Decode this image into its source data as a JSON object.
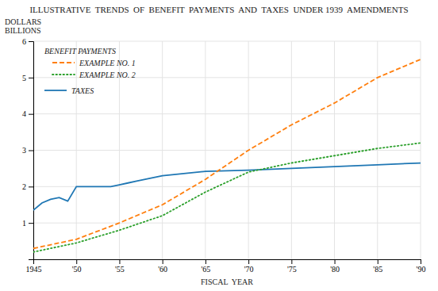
{
  "chart_data": {
    "type": "line",
    "title": "ILLUSTRATIVE  TRENDS  OF  BENEFIT  PAYMENTS  AND  TAXES  UNDER 1939  AMENDMENTS",
    "xlabel": "FISCAL  YEAR",
    "ylabel": [
      "DOLLARS",
      "BILLIONS"
    ],
    "annotations": [
      "BENEFIT PAYMENTS"
    ],
    "xlim": [
      1945,
      1990
    ],
    "ylim": [
      0,
      6
    ],
    "xticks": [
      1945,
      {
        "value": 1950,
        "label": "'50"
      },
      {
        "value": 1955,
        "label": "'55"
      },
      {
        "value": 1960,
        "label": "'60"
      },
      {
        "value": 1965,
        "label": "'65"
      },
      {
        "value": 1970,
        "label": "'70"
      },
      {
        "value": 1975,
        "label": "'75"
      },
      {
        "value": 1980,
        "label": "'80"
      },
      {
        "value": 1985,
        "label": "'85"
      },
      {
        "value": 1990,
        "label": "'90"
      }
    ],
    "yticks": [
      1,
      2,
      3,
      4,
      5,
      6
    ],
    "grid": true,
    "legend": "upper left",
    "series": [
      {
        "name": "TAXES",
        "line_style": "solid",
        "x": [
          1945,
          1946,
          1947,
          1948,
          1949,
          1950,
          1951,
          1952,
          1953,
          1954,
          1955,
          1956,
          1957,
          1958,
          1959,
          1960,
          1965,
          1970,
          1975,
          1980,
          1985,
          1990
        ],
        "values": [
          1.35,
          1.55,
          1.65,
          1.7,
          1.6,
          2.0,
          2.0,
          2.0,
          2.0,
          2.0,
          2.05,
          2.1,
          2.15,
          2.2,
          2.25,
          2.3,
          2.42,
          2.45,
          2.5,
          2.55,
          2.6,
          2.65
        ]
      },
      {
        "name": "EXAMPLE NO. 1",
        "line_style": "dashed",
        "x": [
          1945,
          1950,
          1955,
          1960,
          1965,
          1970,
          1975,
          1980,
          1985,
          1990
        ],
        "values": [
          0.3,
          0.55,
          1.0,
          1.5,
          2.2,
          3.0,
          3.7,
          4.3,
          5.0,
          5.5
        ]
      },
      {
        "name": "EXAMPLE NO. 2",
        "line_style": "dotted",
        "x": [
          1945,
          1950,
          1955,
          1960,
          1965,
          1970,
          1975,
          1980,
          1985,
          1990
        ],
        "values": [
          0.2,
          0.45,
          0.8,
          1.2,
          1.85,
          2.4,
          2.65,
          2.85,
          3.05,
          3.2
        ]
      }
    ]
  }
}
